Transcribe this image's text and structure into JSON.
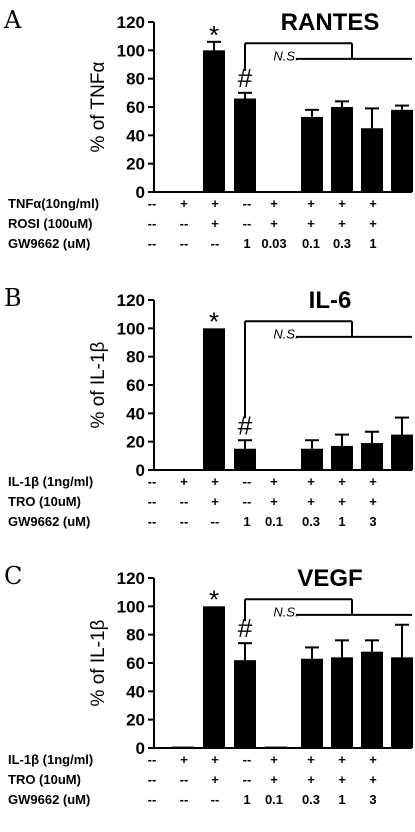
{
  "chart_data": [
    {
      "type": "bar",
      "panel_label": "A",
      "title": "RANTES",
      "ylabel": "% of TNFα",
      "ylim": [
        0,
        120
      ],
      "yticks": [
        "0",
        "20",
        "40",
        "60",
        "80",
        "100",
        "120"
      ],
      "values": [
        0,
        100,
        66,
        0,
        53,
        60,
        45,
        58
      ],
      "errors": [
        0,
        6,
        4,
        0,
        5,
        4,
        14,
        3
      ],
      "annotations": [
        {
          "text": "*",
          "bar": 1
        },
        {
          "text": "#",
          "bar": 2
        },
        {
          "text": "N.S.",
          "from_bar": 2,
          "to_bar": 7
        }
      ],
      "condition_rows": [
        {
          "label": "TNFα(10ng/ml)",
          "values": [
            "--",
            "+",
            "+",
            "--",
            "+",
            "+",
            "+",
            "+"
          ]
        },
        {
          "label": "ROSI (100uM)",
          "values": [
            "--",
            "--",
            "+",
            "--",
            "+",
            "+",
            "+",
            "+"
          ]
        },
        {
          "label": "GW9662 (uM)",
          "values": [
            "--",
            "--",
            "--",
            "1",
            "0.03",
            "0.1",
            "0.3",
            "1"
          ]
        }
      ]
    },
    {
      "type": "bar",
      "panel_label": "B",
      "title": "IL-6",
      "ylabel": "% of IL-1β",
      "ylim": [
        0,
        120
      ],
      "yticks": [
        "0",
        "20",
        "40",
        "60",
        "80",
        "100",
        "120"
      ],
      "values": [
        0,
        100,
        15,
        0,
        15,
        17,
        19,
        25
      ],
      "errors": [
        0,
        0,
        6,
        0,
        6,
        8,
        8,
        12
      ],
      "annotations": [
        {
          "text": "*",
          "bar": 1
        },
        {
          "text": "#",
          "bar": 2
        },
        {
          "text": "N.S.",
          "from_bar": 2,
          "to_bar": 7
        }
      ],
      "condition_rows": [
        {
          "label": "IL-1β (1ng/ml)",
          "values": [
            "--",
            "+",
            "+",
            "--",
            "+",
            "+",
            "+",
            "+"
          ]
        },
        {
          "label": "TRO (10uM)",
          "values": [
            "--",
            "--",
            "+",
            "--",
            "+",
            "+",
            "+",
            "+"
          ]
        },
        {
          "label": "GW9662 (uM)",
          "values": [
            "--",
            "--",
            "--",
            "1",
            "0.1",
            "0.3",
            "1",
            "3"
          ]
        }
      ]
    },
    {
      "type": "bar",
      "panel_label": "C",
      "title": "VEGF",
      "ylabel": "% of IL-1β",
      "ylim": [
        0,
        120
      ],
      "yticks": [
        "0",
        "20",
        "40",
        "60",
        "80",
        "100",
        "120"
      ],
      "values": [
        1,
        100,
        62,
        1,
        63,
        64,
        68,
        64
      ],
      "errors": [
        0,
        0,
        12,
        0,
        8,
        12,
        8,
        23
      ],
      "annotations": [
        {
          "text": "*",
          "bar": 1
        },
        {
          "text": "#",
          "bar": 2
        },
        {
          "text": "N.S.",
          "from_bar": 2,
          "to_bar": 7
        }
      ],
      "condition_rows": [
        {
          "label": "IL-1β (1ng/ml)",
          "values": [
            "--",
            "+",
            "+",
            "--",
            "+",
            "+",
            "+",
            "+"
          ]
        },
        {
          "label": "TRO (10uM)",
          "values": [
            "--",
            "--",
            "+",
            "--",
            "+",
            "+",
            "+",
            "+"
          ]
        },
        {
          "label": "GW9662 (uM)",
          "values": [
            "--",
            "--",
            "--",
            "1",
            "0.1",
            "0.3",
            "1",
            "3"
          ]
        }
      ]
    }
  ]
}
